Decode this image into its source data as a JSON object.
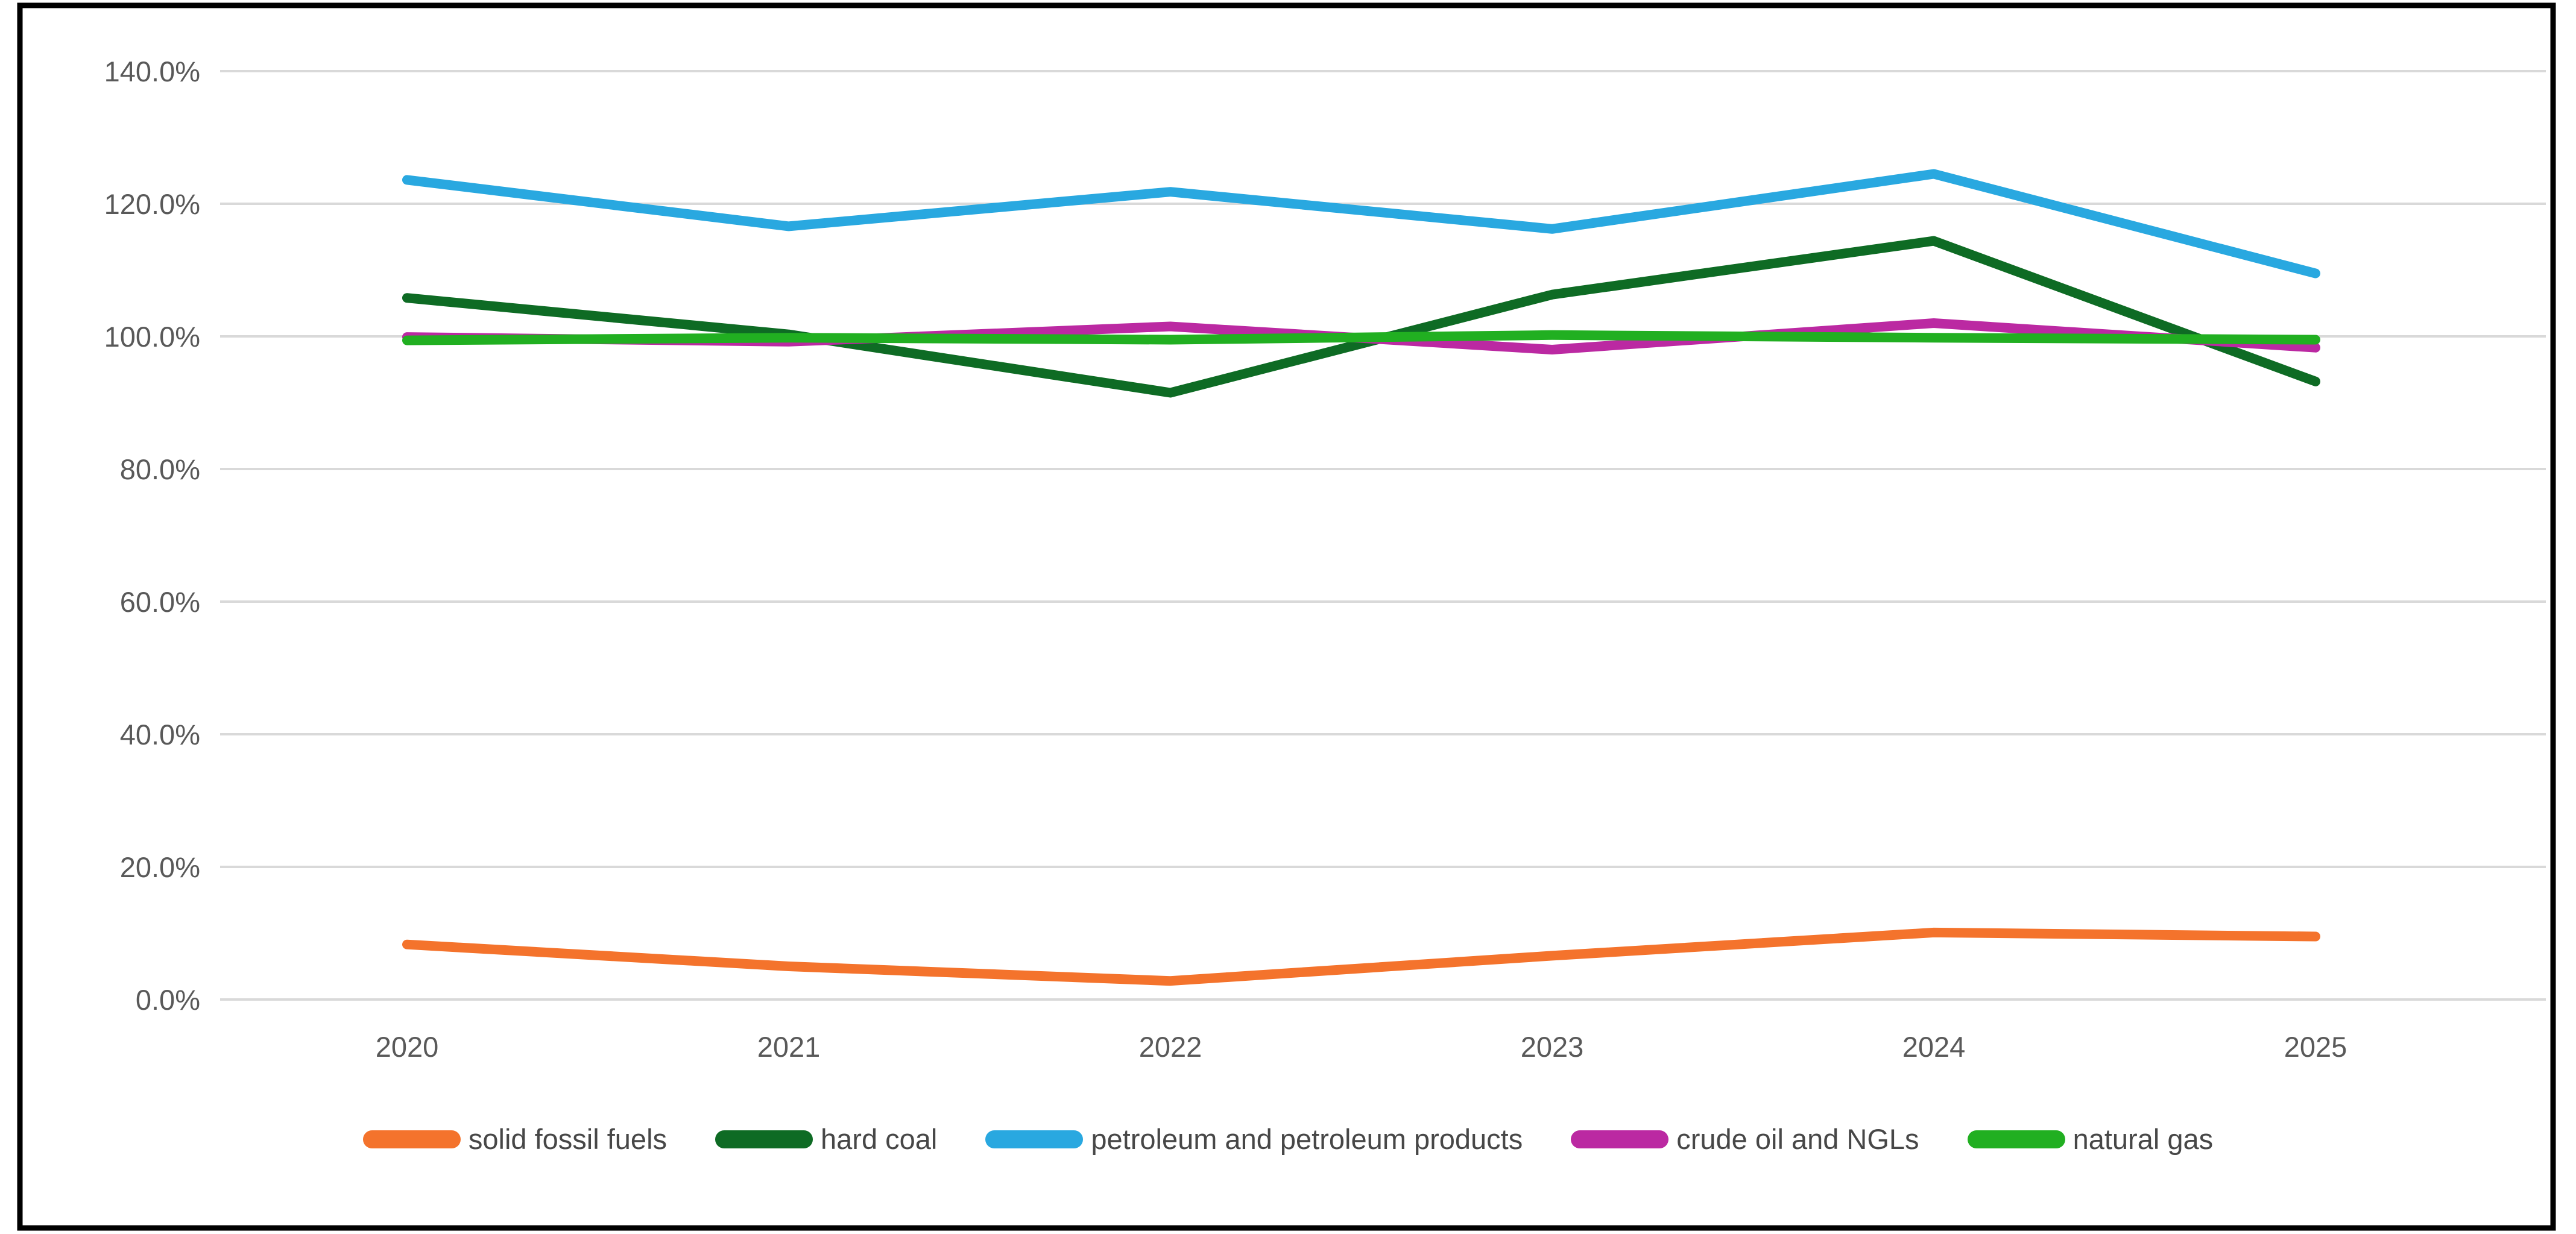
{
  "chart_data": {
    "type": "line",
    "title": "",
    "xlabel": "",
    "ylabel": "",
    "categories": [
      "2020",
      "2021",
      "2022",
      "2023",
      "2024",
      "2025"
    ],
    "series": [
      {
        "name": "solid fossil fuels",
        "color": "#F4732C",
        "values": [
          8.3,
          5.0,
          2.8,
          6.6,
          10.1,
          9.5
        ]
      },
      {
        "name": "hard coal",
        "color": "#0E6B24",
        "values": [
          105.8,
          100.3,
          91.5,
          106.3,
          114.4,
          93.2
        ]
      },
      {
        "name": "petroleum and petroleum products",
        "color": "#29A8E0",
        "values": [
          123.6,
          116.6,
          121.8,
          116.2,
          124.5,
          109.5
        ]
      },
      {
        "name": "crude oil and NGLs",
        "color": "#BB29A2",
        "values": [
          99.9,
          99.2,
          101.5,
          98.0,
          102.0,
          98.3
        ]
      },
      {
        "name": "natural gas",
        "color": "#21AF21",
        "values": [
          99.4,
          99.8,
          99.5,
          100.2,
          99.8,
          99.5
        ]
      }
    ],
    "y_axis": {
      "min": 0,
      "max": 140,
      "step": 20,
      "unit": "%",
      "tick_labels": [
        "0.0%",
        "20.0%",
        "40.0%",
        "60.0%",
        "80.0%",
        "100.0%",
        "120.0%",
        "140.0%"
      ]
    },
    "grid": true,
    "legend_position": "bottom"
  },
  "colors": {
    "background": "#FFFFFF",
    "gridline": "#D9D9D9",
    "axis_text": "#595959",
    "legend_text": "#474747",
    "border": "#000000"
  }
}
